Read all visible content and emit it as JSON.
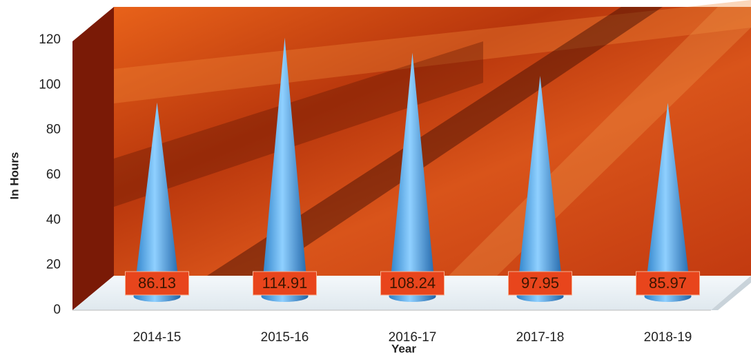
{
  "chart_data": {
    "type": "cone",
    "categories": [
      "2014-15",
      "2015-16",
      "2016-17",
      "2017-18",
      "2018-19"
    ],
    "values": [
      86.13,
      114.91,
      108.24,
      97.95,
      85.97
    ],
    "color": "#4a9fe0",
    "ylim": [
      0,
      120
    ],
    "yticks": [
      0,
      20,
      40,
      60,
      80,
      100,
      120
    ],
    "ylabel": "In Hours",
    "xlabel": "Year"
  }
}
